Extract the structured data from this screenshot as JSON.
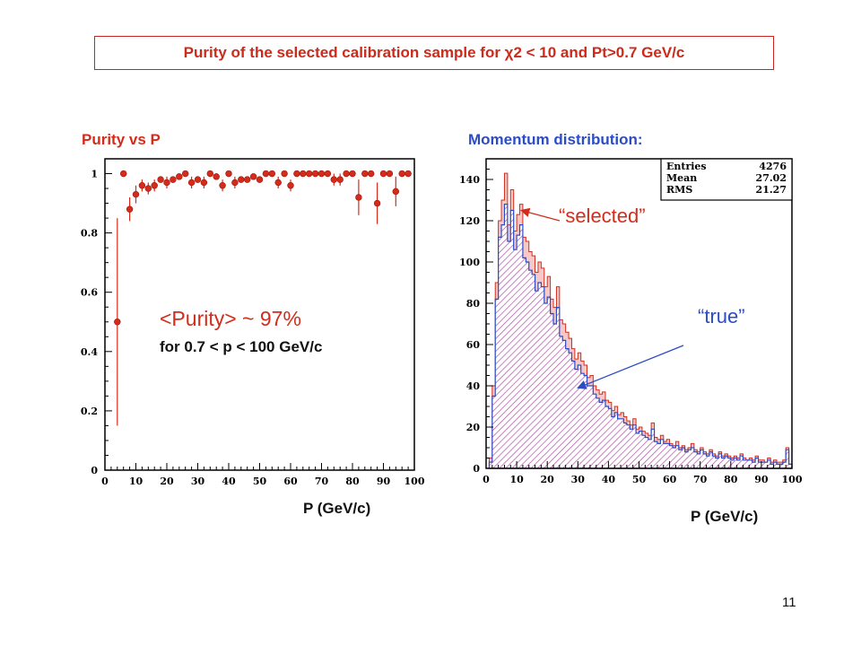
{
  "title": "Purity of the selected calibration sample for χ2 < 10 and Pt>0.7 GeV/c",
  "page_number": "11",
  "annotations": {
    "purity_mean": "<Purity> ~ 97%",
    "purity_range": "for 0.7 < p < 100 GeV/c",
    "selected": "“selected”",
    "true": "“true”"
  },
  "colors": {
    "red": "#d42c1a",
    "blue": "#2b4cc4",
    "black": "#000000"
  },
  "chart_data": [
    {
      "type": "scatter",
      "title": "Purity vs P",
      "xlabel": "P (GeV/c)",
      "ylabel": "",
      "xlim": [
        0,
        100
      ],
      "ylim": [
        0,
        1.05
      ],
      "xticks": [
        "0",
        "10",
        "20",
        "30",
        "40",
        "50",
        "60",
        "70",
        "80",
        "90",
        "100"
      ],
      "yticks": [
        "0",
        "0.2",
        "0.4",
        "0.6",
        "0.8",
        "1"
      ],
      "series": [
        {
          "x": [
            4,
            6,
            8,
            10,
            12,
            14,
            16,
            18,
            20,
            22,
            24,
            26,
            28,
            30,
            32,
            34,
            36,
            38,
            40,
            42,
            44,
            46,
            48,
            50,
            52,
            54,
            56,
            58,
            60,
            62,
            64,
            66,
            68,
            70,
            72,
            74,
            76,
            78,
            80,
            82,
            84,
            86,
            88,
            90,
            92,
            94,
            96,
            98
          ],
          "y": [
            0.5,
            1.0,
            0.88,
            0.93,
            0.96,
            0.95,
            0.96,
            0.98,
            0.97,
            0.98,
            0.99,
            1.0,
            0.97,
            0.98,
            0.97,
            1.0,
            0.99,
            0.96,
            1.0,
            0.97,
            0.98,
            0.98,
            0.99,
            0.98,
            1.0,
            1.0,
            0.97,
            1.0,
            0.96,
            1.0,
            1.0,
            1.0,
            1.0,
            1.0,
            1.0,
            0.98,
            0.98,
            1.0,
            1.0,
            0.92,
            1.0,
            1.0,
            0.9,
            1.0,
            1.0,
            0.94,
            1.0,
            1.0
          ],
          "err": [
            0.35,
            0,
            0.04,
            0.03,
            0.02,
            0.02,
            0.02,
            0.01,
            0.02,
            0.01,
            0.01,
            0,
            0.02,
            0.01,
            0.02,
            0,
            0.01,
            0.02,
            0,
            0.02,
            0.01,
            0.01,
            0.01,
            0.01,
            0,
            0,
            0.02,
            0,
            0.02,
            0,
            0,
            0,
            0,
            0,
            0,
            0.02,
            0.02,
            0,
            0,
            0.06,
            0,
            0,
            0.07,
            0,
            0,
            0.05,
            0,
            0
          ]
        }
      ]
    },
    {
      "type": "bar",
      "title": "Momentum distribution:",
      "xlabel": "P (GeV/c)",
      "ylabel": "",
      "xlim": [
        0,
        100
      ],
      "ylim": [
        0,
        150
      ],
      "xticks": [
        "0",
        "10",
        "20",
        "30",
        "40",
        "50",
        "60",
        "70",
        "80",
        "90",
        "100"
      ],
      "yticks": [
        "0",
        "20",
        "40",
        "60",
        "80",
        "100",
        "120",
        "140"
      ],
      "bin_width": 1,
      "bin_start": 1,
      "stats": [
        {
          "label": "Entries",
          "value": "4276"
        },
        {
          "label": "Mean",
          "value": "27.02"
        },
        {
          "label": "RMS",
          "value": "21.27"
        }
      ],
      "series": [
        {
          "name": "selected",
          "values": [
            5,
            40,
            90,
            120,
            130,
            143,
            118,
            135,
            115,
            123,
            128,
            112,
            110,
            105,
            103,
            95,
            100,
            97,
            88,
            93,
            82,
            78,
            88,
            72,
            70,
            66,
            63,
            58,
            53,
            56,
            52,
            50,
            44,
            45,
            40,
            38,
            36,
            37,
            33,
            32,
            28,
            30,
            26,
            27,
            25,
            23,
            21,
            24,
            19,
            20,
            18,
            17,
            16,
            22,
            15,
            14,
            16,
            13,
            14,
            12,
            11,
            13,
            10,
            11,
            9,
            10,
            12,
            9,
            8,
            10,
            8,
            7,
            9,
            7,
            6,
            8,
            6,
            7,
            6,
            5,
            6,
            5,
            7,
            5,
            4,
            5,
            4,
            6,
            4,
            4,
            3,
            5,
            3,
            4,
            3,
            3,
            4,
            10,
            2
          ]
        },
        {
          "name": "true",
          "values": [
            3,
            35,
            82,
            112,
            118,
            128,
            110,
            125,
            106,
            113,
            118,
            102,
            100,
            96,
            94,
            86,
            90,
            88,
            80,
            83,
            75,
            70,
            78,
            64,
            62,
            58,
            56,
            52,
            48,
            50,
            46,
            45,
            40,
            40,
            36,
            34,
            32,
            33,
            30,
            29,
            25,
            27,
            24,
            24,
            22,
            21,
            19,
            21,
            17,
            18,
            16,
            15,
            14,
            19,
            13,
            12,
            14,
            12,
            12,
            11,
            10,
            11,
            9,
            10,
            8,
            9,
            10,
            8,
            7,
            9,
            7,
            6,
            8,
            6,
            5,
            7,
            5,
            6,
            5,
            4,
            5,
            4,
            6,
            4,
            4,
            4,
            3,
            5,
            3,
            3,
            3,
            4,
            2,
            3,
            2,
            2,
            3,
            9,
            2
          ]
        }
      ]
    }
  ]
}
